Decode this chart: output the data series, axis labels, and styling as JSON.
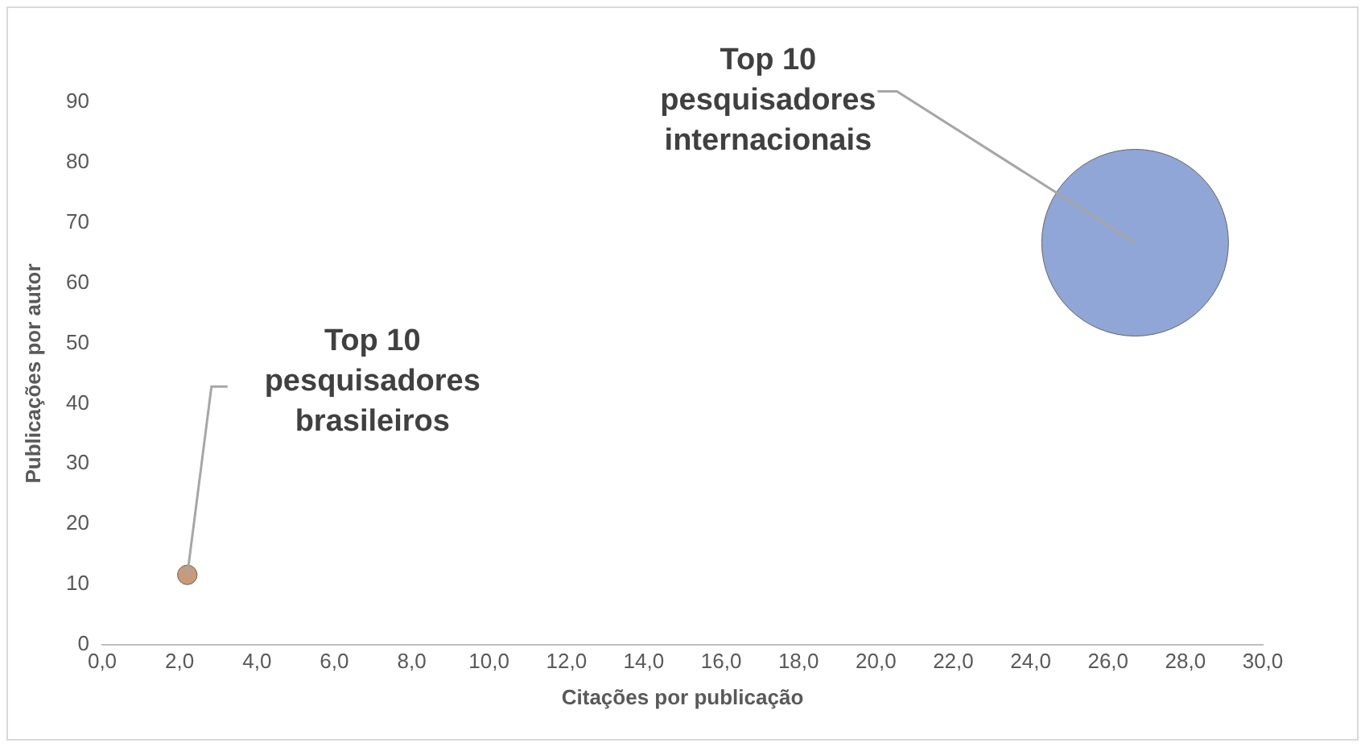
{
  "chart_data": {
    "type": "bubble",
    "xlabel": "Citações por publicação",
    "ylabel": "Publicações por autor",
    "xlim": [
      0,
      30
    ],
    "xticks": [
      {
        "value": 0,
        "label": "0,0"
      },
      {
        "value": 2,
        "label": "2,0"
      },
      {
        "value": 4,
        "label": "4,0"
      },
      {
        "value": 6,
        "label": "6,0"
      },
      {
        "value": 8,
        "label": "8,0"
      },
      {
        "value": 10,
        "label": "10,0"
      },
      {
        "value": 12,
        "label": "12,0"
      },
      {
        "value": 14,
        "label": "14,0"
      },
      {
        "value": 16,
        "label": "16,0"
      },
      {
        "value": 18,
        "label": "18,0"
      },
      {
        "value": 20,
        "label": "20,0"
      },
      {
        "value": 22,
        "label": "22,0"
      },
      {
        "value": 24,
        "label": "24,0"
      },
      {
        "value": 26,
        "label": "26,0"
      },
      {
        "value": 28,
        "label": "28,0"
      },
      {
        "value": 30,
        "label": "30,0"
      }
    ],
    "ylim": [
      0,
      90
    ],
    "yticks": [
      0,
      10,
      20,
      30,
      40,
      50,
      60,
      70,
      80,
      90
    ],
    "series": [
      {
        "name": "Top 10\npesquisadores\nbrasileiros",
        "color": "#c99a78",
        "x": [
          2.2
        ],
        "values": [
          11.6
        ],
        "sizes": [
          0.011
        ]
      },
      {
        "name": "Top 10\npesquisadores\ninternacionais",
        "color": "#8fa6d6",
        "x": [
          26.7
        ],
        "values": [
          66.7
        ],
        "sizes": [
          1
        ]
      }
    ],
    "grid": false,
    "legend": false
  }
}
